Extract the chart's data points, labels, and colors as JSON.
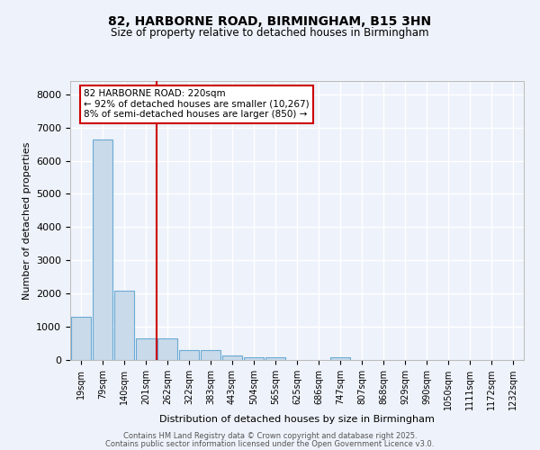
{
  "title1": "82, HARBORNE ROAD, BIRMINGHAM, B15 3HN",
  "title2": "Size of property relative to detached houses in Birmingham",
  "xlabel": "Distribution of detached houses by size in Birmingham",
  "ylabel": "Number of detached properties",
  "categories": [
    "19sqm",
    "79sqm",
    "140sqm",
    "201sqm",
    "262sqm",
    "322sqm",
    "383sqm",
    "443sqm",
    "504sqm",
    "565sqm",
    "625sqm",
    "686sqm",
    "747sqm",
    "807sqm",
    "868sqm",
    "929sqm",
    "990sqm",
    "1050sqm",
    "1111sqm",
    "1172sqm",
    "1232sqm"
  ],
  "values": [
    1300,
    6650,
    2100,
    650,
    650,
    300,
    300,
    130,
    80,
    80,
    0,
    0,
    80,
    0,
    0,
    0,
    0,
    0,
    0,
    0,
    0
  ],
  "bar_color": "#c9daea",
  "bar_edge_color": "#6aaad4",
  "vline_color": "#cc0000",
  "vline_x_index": 3,
  "annotation_line1": "82 HARBORNE ROAD: 220sqm",
  "annotation_line2": "← 92% of detached houses are smaller (10,267)",
  "annotation_line3": "8% of semi-detached houses are larger (850) →",
  "ylim": [
    0,
    8400
  ],
  "yticks": [
    0,
    1000,
    2000,
    3000,
    4000,
    5000,
    6000,
    7000,
    8000
  ],
  "bg_color": "#eef2fa",
  "grid_color": "#ffffff",
  "footer1": "Contains HM Land Registry data © Crown copyright and database right 2025.",
  "footer2": "Contains public sector information licensed under the Open Government Licence v3.0."
}
